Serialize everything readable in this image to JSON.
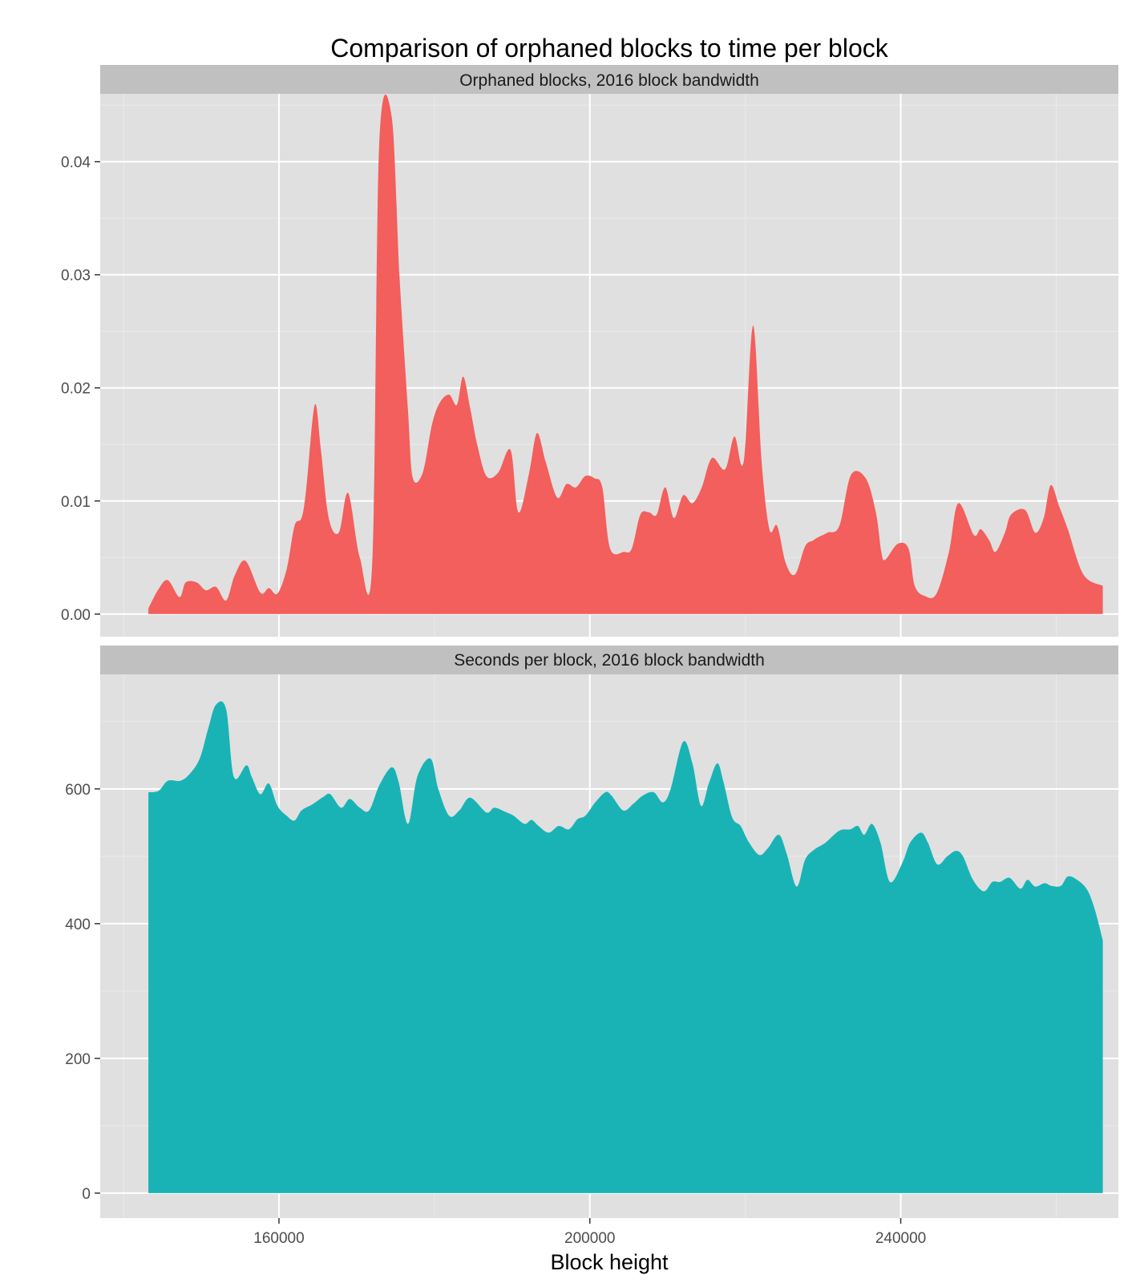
{
  "chart_data": {
    "type": "area",
    "title": "Comparison of orphaned blocks to time per block",
    "xlabel": "Block height",
    "x_ticks": [
      160000,
      200000,
      240000
    ],
    "x_tick_labels": [
      "160000",
      "200000",
      "240000"
    ],
    "xlim": [
      137000,
      268000
    ],
    "panels": [
      {
        "strip": "Orphaned blocks, 2016 block bandwidth",
        "color": "#F25F5C",
        "ylim": [
          -0.002,
          0.046
        ],
        "y_ticks": [
          0,
          0.01,
          0.02,
          0.03,
          0.04
        ],
        "y_tick_labels": [
          "0.00",
          "0.01",
          "0.02",
          "0.03",
          "0.04"
        ],
        "x": [
          143200,
          144500,
          145700,
          147200,
          148000,
          149400,
          150600,
          151900,
          153200,
          154300,
          155700,
          157600,
          158700,
          159800,
          161000,
          162000,
          162900,
          163500,
          164600,
          165400,
          166400,
          167700,
          168900,
          170400,
          172000,
          172900,
          174500,
          175500,
          176600,
          177200,
          178500,
          179700,
          180700,
          181900,
          182900,
          183700,
          184600,
          185500,
          186700,
          188200,
          189800,
          190800,
          192200,
          193200,
          194300,
          195800,
          197000,
          198200,
          199400,
          200600,
          201600,
          202600,
          204400,
          205400,
          206500,
          207600,
          208600,
          209700,
          210800,
          212000,
          213200,
          214400,
          215700,
          217400,
          218600,
          219800,
          221000,
          222100,
          223100,
          224100,
          225200,
          226400,
          227700,
          228700,
          229400,
          230600,
          232100,
          233600,
          235500,
          236800,
          237500,
          238000,
          239600,
          241000,
          241800,
          243100,
          244600,
          246200,
          247400,
          249400,
          250300,
          251400,
          252200,
          253400,
          254200,
          256000,
          257300,
          258400,
          259300,
          260400,
          261500,
          263500,
          266000
        ],
        "values": [
          0.0005,
          0.0022,
          0.003,
          0.0015,
          0.0028,
          0.0028,
          0.0021,
          0.0024,
          0.0012,
          0.0034,
          0.0047,
          0.0019,
          0.0023,
          0.0018,
          0.004,
          0.0078,
          0.0085,
          0.011,
          0.0185,
          0.0145,
          0.0085,
          0.0072,
          0.0107,
          0.005,
          0.0045,
          0.0415,
          0.044,
          0.03,
          0.018,
          0.0121,
          0.0125,
          0.0168,
          0.0187,
          0.0194,
          0.0185,
          0.021,
          0.0182,
          0.015,
          0.0122,
          0.0125,
          0.0145,
          0.009,
          0.0125,
          0.016,
          0.0135,
          0.0103,
          0.0115,
          0.0112,
          0.0122,
          0.012,
          0.0112,
          0.0058,
          0.0055,
          0.0058,
          0.0088,
          0.009,
          0.0088,
          0.0112,
          0.0085,
          0.0105,
          0.0098,
          0.0112,
          0.0138,
          0.0128,
          0.0157,
          0.0135,
          0.0255,
          0.0135,
          0.0075,
          0.0078,
          0.0045,
          0.0035,
          0.006,
          0.0065,
          0.0068,
          0.0072,
          0.0078,
          0.0123,
          0.012,
          0.009,
          0.0055,
          0.0048,
          0.0062,
          0.0058,
          0.0025,
          0.0016,
          0.0018,
          0.0055,
          0.0098,
          0.007,
          0.0075,
          0.0065,
          0.0055,
          0.0072,
          0.0088,
          0.0092,
          0.0072,
          0.0085,
          0.0114,
          0.0095,
          0.0075,
          0.0035,
          0.0025
        ]
      },
      {
        "strip": "Seconds per block, 2016 block bandwidth",
        "color": "#19B3B6",
        "ylim": [
          -37,
          770
        ],
        "y_ticks": [
          0,
          200,
          400,
          600
        ],
        "y_tick_labels": [
          "0",
          "200",
          "400",
          "600"
        ],
        "x": [
          143200,
          144500,
          145700,
          147300,
          148500,
          149800,
          150900,
          151900,
          153200,
          154200,
          155800,
          156500,
          157600,
          158700,
          159800,
          161000,
          162000,
          162900,
          164300,
          165700,
          166600,
          168000,
          169100,
          170400,
          171600,
          172900,
          174500,
          175400,
          176600,
          177800,
          179500,
          180500,
          181900,
          183200,
          184600,
          186700,
          187700,
          189100,
          190200,
          191600,
          192500,
          193400,
          194700,
          196000,
          197300,
          198400,
          199400,
          200700,
          202000,
          202800,
          204300,
          205600,
          206800,
          208200,
          209400,
          210400,
          212000,
          213200,
          214300,
          215300,
          216400,
          217200,
          218300,
          219400,
          220400,
          221800,
          222900,
          224300,
          225300,
          226600,
          227700,
          228900,
          230300,
          232100,
          233500,
          234500,
          235300,
          236300,
          237400,
          238600,
          240200,
          241200,
          242600,
          243500,
          244700,
          246000,
          247100,
          248000,
          249300,
          250700,
          251800,
          252800,
          254000,
          255400,
          256300,
          257300,
          258500,
          259400,
          260600,
          261500,
          262700,
          264000,
          265000,
          266000
        ],
        "values": [
          595,
          597,
          612,
          612,
          622,
          645,
          690,
          725,
          718,
          618,
          635,
          618,
          592,
          608,
          575,
          560,
          553,
          568,
          577,
          588,
          592,
          572,
          585,
          572,
          568,
          605,
          632,
          610,
          548,
          618,
          645,
          600,
          560,
          568,
          587,
          565,
          572,
          566,
          560,
          548,
          554,
          545,
          535,
          545,
          540,
          555,
          560,
          580,
          595,
          590,
          568,
          578,
          590,
          595,
          580,
          600,
          670,
          638,
          575,
          608,
          638,
          610,
          558,
          545,
          522,
          502,
          512,
          532,
          505,
          455,
          495,
          510,
          520,
          538,
          540,
          545,
          532,
          548,
          520,
          462,
          490,
          520,
          535,
          520,
          488,
          500,
          508,
          500,
          465,
          448,
          462,
          462,
          468,
          452,
          465,
          455,
          460,
          456,
          456,
          470,
          465,
          450,
          420,
          375
        ]
      }
    ]
  }
}
